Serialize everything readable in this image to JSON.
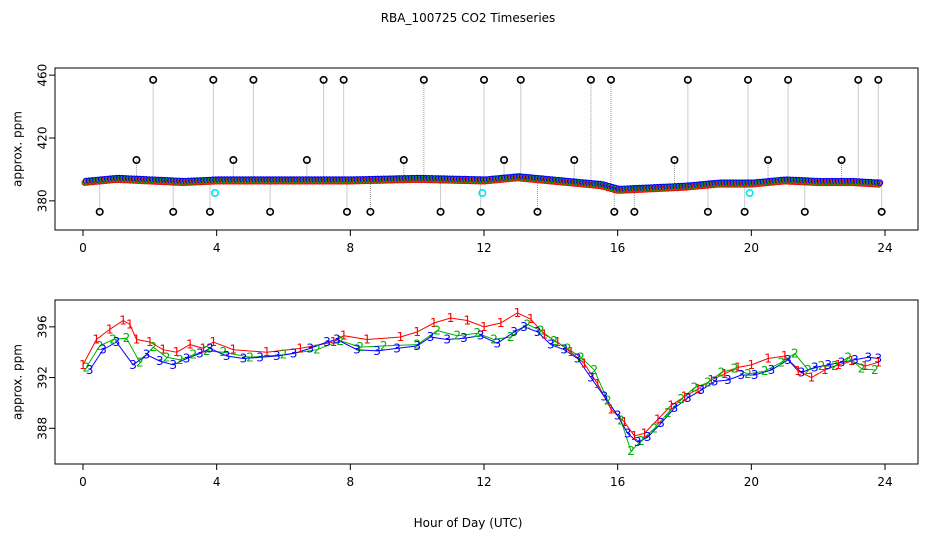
{
  "title": "RBA_100725  CO2 Timeseries",
  "xlabel": "Hour of Day (UTC)",
  "colors": {
    "raw": "#000000",
    "flag": "#00e5ee",
    "ch1": "#ff0000",
    "ch2": "#00b000",
    "ch3": "#0000ff",
    "line": "#999999"
  },
  "chart_data": [
    {
      "type": "scatter",
      "title": "RBA_100725  CO2 Timeseries",
      "xlabel": "",
      "ylabel": "approx. ppm",
      "xlim": [
        0,
        24
      ],
      "ylim": [
        364,
        462
      ],
      "xticks": [
        0,
        4,
        8,
        12,
        16,
        20,
        24
      ],
      "yticks": [
        380,
        420,
        460
      ],
      "spikes_high": [
        2.1,
        3.9,
        5.1,
        7.2,
        7.8,
        10.2,
        12.0,
        13.1,
        15.2,
        15.8,
        18.1,
        19.9,
        21.1,
        23.2,
        23.8
      ],
      "spikes_low": [
        0.5,
        2.7,
        3.8,
        5.6,
        7.9,
        8.6,
        10.7,
        11.9,
        13.6,
        15.9,
        16.5,
        18.7,
        19.8,
        21.6,
        23.9
      ],
      "spikes_mid": [
        1.6,
        4.5,
        6.7,
        9.6,
        12.6,
        14.7,
        17.7,
        20.5,
        22.7
      ],
      "flagged": [
        [
          3.95,
          385
        ],
        [
          11.95,
          385
        ],
        [
          19.95,
          385
        ]
      ],
      "series": [
        {
          "name": "",
          "x": [
            0,
            1,
            2,
            3,
            4,
            6,
            8,
            10,
            12,
            13,
            14,
            15,
            15.5,
            16,
            17,
            18,
            19,
            20,
            21,
            22,
            23,
            23.8
          ],
          "values": [
            392,
            394,
            393,
            392,
            393,
            393,
            393,
            394,
            393,
            395,
            393,
            391,
            390,
            387,
            388,
            389,
            391,
            391,
            393,
            392,
            392,
            391
          ]
        }
      ]
    },
    {
      "type": "scatter",
      "title": "",
      "xlabel": "Hour of Day (UTC)",
      "ylabel": "approx. ppm",
      "xlim": [
        0,
        24
      ],
      "ylim": [
        385.5,
        397.8
      ],
      "xticks": [
        0,
        4,
        8,
        12,
        16,
        20,
        24
      ],
      "yticks": [
        388,
        392,
        396
      ],
      "series": [
        {
          "name": "1",
          "x": [
            0,
            0.4,
            0.8,
            1.2,
            1.4,
            1.6,
            2.0,
            2.4,
            2.8,
            3.2,
            3.6,
            3.9,
            4.5,
            5.5,
            6.5,
            7.5,
            7.8,
            8.5,
            9.5,
            10.0,
            10.5,
            11.0,
            11.5,
            12.0,
            12.5,
            13.0,
            13.4,
            13.8,
            14.2,
            14.6,
            15.0,
            15.4,
            15.8,
            16.2,
            16.5,
            16.8,
            17.2,
            17.6,
            18.0,
            18.4,
            18.8,
            19.2,
            19.6,
            20.0,
            20.5,
            21.0,
            21.4,
            21.8,
            22.2,
            22.6,
            23.0,
            23.4,
            23.8
          ],
          "values": [
            393.0,
            395.0,
            395.8,
            396.5,
            396.2,
            395.0,
            394.8,
            394.2,
            394.0,
            394.6,
            394.3,
            394.8,
            394.2,
            394.0,
            394.3,
            394.8,
            395.3,
            395.0,
            395.2,
            395.6,
            396.3,
            396.7,
            396.5,
            396.0,
            396.3,
            397.1,
            396.6,
            395.4,
            394.8,
            394.0,
            393.1,
            391.5,
            389.5,
            388.5,
            387.4,
            387.6,
            388.7,
            389.8,
            390.5,
            391.1,
            391.8,
            392.3,
            392.8,
            393.0,
            393.5,
            393.7,
            392.5,
            392.0,
            392.6,
            393.0,
            393.3,
            392.9,
            393.2
          ]
        },
        {
          "name": "2",
          "x": [
            0.1,
            0.5,
            0.9,
            1.3,
            1.7,
            2.1,
            2.5,
            2.9,
            3.3,
            3.7,
            4.2,
            5.0,
            6.0,
            7.0,
            7.7,
            8.3,
            9.0,
            10.0,
            10.6,
            11.2,
            11.8,
            12.3,
            12.8,
            13.3,
            13.7,
            14.1,
            14.5,
            14.9,
            15.3,
            15.7,
            16.1,
            16.4,
            16.7,
            17.1,
            17.5,
            17.9,
            18.3,
            18.7,
            19.1,
            19.5,
            19.9,
            20.4,
            20.9,
            21.3,
            21.7,
            22.1,
            22.5,
            22.9,
            23.3,
            23.7
          ],
          "values": [
            392.8,
            394.5,
            395.0,
            395.1,
            393.2,
            394.4,
            393.6,
            393.4,
            393.8,
            394.1,
            394.0,
            393.6,
            393.8,
            394.2,
            394.9,
            394.4,
            394.5,
            394.6,
            395.7,
            395.3,
            395.5,
            395.0,
            395.2,
            396.2,
            395.7,
            394.9,
            394.3,
            393.6,
            392.6,
            390.2,
            388.6,
            386.2,
            387.0,
            388.0,
            389.2,
            390.3,
            391.2,
            391.6,
            392.4,
            392.7,
            392.3,
            392.5,
            393.2,
            393.9,
            392.6,
            392.9,
            392.9,
            393.6,
            392.7,
            392.6
          ]
        },
        {
          "name": "3",
          "x": [
            0.2,
            0.6,
            1.0,
            1.5,
            1.9,
            2.3,
            2.7,
            3.1,
            3.5,
            3.8,
            4.3,
            4.8,
            5.3,
            5.8,
            6.3,
            6.8,
            7.3,
            7.6,
            8.2,
            8.8,
            9.4,
            10.0,
            10.4,
            10.9,
            11.4,
            11.9,
            12.4,
            12.9,
            13.2,
            13.6,
            14.0,
            14.4,
            14.8,
            15.2,
            15.6,
            16.0,
            16.3,
            16.6,
            16.9,
            17.3,
            17.7,
            18.1,
            18.5,
            18.9,
            19.3,
            19.7,
            20.1,
            20.6,
            21.1,
            21.5,
            21.9,
            22.3,
            22.7,
            23.1,
            23.5,
            23.8
          ],
          "values": [
            392.6,
            394.2,
            394.8,
            393.0,
            393.8,
            393.3,
            393.0,
            393.5,
            393.9,
            394.3,
            393.7,
            393.5,
            393.6,
            393.7,
            393.9,
            394.3,
            394.8,
            395.0,
            394.2,
            394.1,
            394.3,
            394.5,
            395.2,
            395.0,
            395.1,
            395.3,
            394.7,
            395.6,
            396.0,
            395.6,
            394.6,
            394.2,
            393.5,
            392.0,
            390.5,
            389.0,
            387.6,
            386.9,
            387.3,
            388.4,
            389.6,
            390.4,
            391.0,
            391.7,
            391.8,
            392.2,
            392.2,
            392.6,
            393.4,
            392.4,
            392.8,
            393.0,
            393.2,
            393.4,
            393.6,
            393.5
          ]
        }
      ]
    }
  ]
}
